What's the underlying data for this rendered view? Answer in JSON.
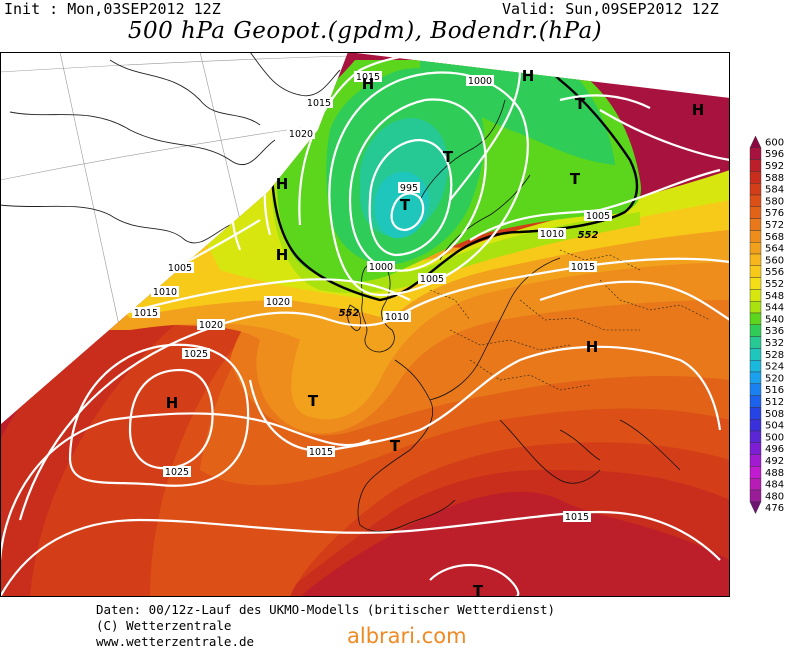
{
  "header": {
    "init": "Init : Mon,03SEP2012 12Z",
    "valid": "Valid: Sun,09SEP2012 12Z",
    "title": "500 hPa Geopot.(gpdm), Bodendr.(hPa)"
  },
  "map": {
    "pressure_labels": [
      {
        "id": "p1015-a",
        "text": "1015"
      },
      {
        "id": "p1015-b",
        "text": "1015"
      },
      {
        "id": "p1000",
        "text": "1000"
      },
      {
        "id": "p1020-a",
        "text": "1020"
      },
      {
        "id": "p995",
        "text": "995"
      },
      {
        "id": "p1005-a",
        "text": "1005"
      },
      {
        "id": "p1010-a",
        "text": "1010"
      },
      {
        "id": "p1015-c",
        "text": "1015"
      },
      {
        "id": "p1005-b",
        "text": "1005"
      },
      {
        "id": "p1010-b",
        "text": "1010"
      },
      {
        "id": "p1015-d",
        "text": "1015"
      },
      {
        "id": "p1000-b",
        "text": "1000"
      },
      {
        "id": "p1005-c",
        "text": "1005"
      },
      {
        "id": "p1020-b",
        "text": "1020"
      },
      {
        "id": "p1010-c",
        "text": "1010"
      },
      {
        "id": "p1020-c",
        "text": "1020"
      },
      {
        "id": "p1025-a",
        "text": "1025"
      },
      {
        "id": "p1015-e",
        "text": "1015"
      },
      {
        "id": "p1025-b",
        "text": "1025"
      },
      {
        "id": "p1015-f",
        "text": "1015"
      }
    ],
    "centers": [
      {
        "id": "c1",
        "text": "H"
      },
      {
        "id": "c2",
        "text": "H"
      },
      {
        "id": "c3",
        "text": "H"
      },
      {
        "id": "c4",
        "text": "H"
      },
      {
        "id": "c5",
        "text": "H"
      },
      {
        "id": "c6",
        "text": "H"
      },
      {
        "id": "c7",
        "text": "H"
      },
      {
        "id": "c8",
        "text": "T"
      },
      {
        "id": "c9",
        "text": "T"
      },
      {
        "id": "c10",
        "text": "T"
      },
      {
        "id": "c11",
        "text": "T"
      },
      {
        "id": "c12",
        "text": "T"
      },
      {
        "id": "c13",
        "text": "T"
      },
      {
        "id": "c14",
        "text": "T"
      }
    ],
    "contour_552_labels": [
      {
        "id": "g552-a",
        "text": "552"
      },
      {
        "id": "g552-b",
        "text": "552"
      }
    ]
  },
  "legend": {
    "levels": [
      "600",
      "596",
      "592",
      "588",
      "584",
      "580",
      "576",
      "572",
      "568",
      "564",
      "560",
      "556",
      "552",
      "548",
      "544",
      "540",
      "536",
      "532",
      "528",
      "524",
      "520",
      "516",
      "512",
      "508",
      "504",
      "500",
      "496",
      "492",
      "488",
      "484",
      "480",
      "476"
    ],
    "colors": [
      "#8a0640",
      "#a8123e",
      "#bc1f2a",
      "#c92d1c",
      "#d33d18",
      "#dc4f16",
      "#e26318",
      "#e8781a",
      "#ee8c1c",
      "#f2a11c",
      "#f6b61c",
      "#f7ca1a",
      "#f6de16",
      "#d8e60f",
      "#a9e20e",
      "#5cd61c",
      "#2fcc58",
      "#26c894",
      "#1fc6bc",
      "#1ab8dc",
      "#1aa0ec",
      "#1a82f0",
      "#1c62ec",
      "#2644e6",
      "#3a30dc",
      "#5a26d6",
      "#7e1ed4",
      "#a21ad2",
      "#c21ad0",
      "#b81cb6",
      "#9a1c98",
      "#6e1670"
    ]
  },
  "footer": {
    "line1": "Daten: 00/12z-Lauf des UKMO-Modells (britischer Wetterdienst)",
    "line2": "(C) Wetterzentrale",
    "line3": "www.wetterzentrale.de",
    "watermark": "albrari.com"
  }
}
